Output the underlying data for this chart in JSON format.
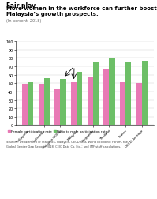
{
  "title_bold": "Fair play",
  "title_main": "More women in the workforce can further boost\nMalaysia’s growth prospects.",
  "subtitle": "(In percent, 2018)",
  "categories": [
    "Philippines",
    "Indonesia",
    "Malaysia (2000)",
    "Malaysia",
    "Singapore",
    "Thailand",
    "Taiwan",
    "OECD Average"
  ],
  "female_rate": [
    48,
    49,
    43,
    51,
    57,
    67,
    51,
    50
  ],
  "ratio_rate": [
    51,
    56,
    55,
    63,
    76,
    80,
    76,
    77
  ],
  "female_color": "#e87ab5",
  "ratio_color": "#6dbf67",
  "bar_width": 0.35,
  "ylim": [
    0,
    100
  ],
  "yticks": [
    0,
    10,
    20,
    30,
    40,
    50,
    60,
    70,
    80,
    90,
    100
  ],
  "background_color": "#f5f5f5",
  "source_text": "Sources: Department of Statistics, Malaysia; OECD.Stat; World Economic Forum, the\nGlobal Gender Gap Report, 2018; CEIC Data Co. Ltd.; and IMF staff calculations.",
  "legend_female": "Female participation rate",
  "legend_ratio": "Ratio to male participation rate",
  "imf_bg": "#5b9bd5",
  "imf_text_color": "#ffffff"
}
